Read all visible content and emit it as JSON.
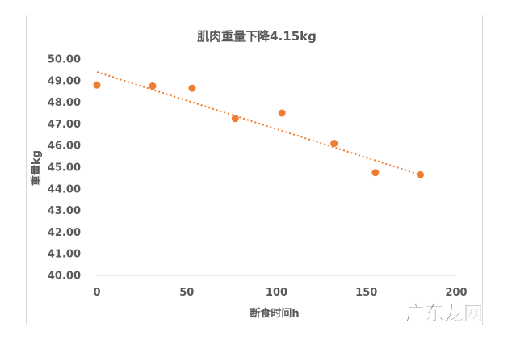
{
  "chart_data": {
    "type": "scatter",
    "title": "肌肉重量下降4.15kg",
    "xlabel": "断食时间h",
    "ylabel": "重量kg",
    "xlim": [
      0,
      200
    ],
    "ylim": [
      40,
      50
    ],
    "x_ticks": [
      "0",
      "50",
      "100",
      "150",
      "200"
    ],
    "y_ticks": [
      "40.00",
      "41.00",
      "42.00",
      "43.00",
      "44.00",
      "45.00",
      "46.00",
      "47.00",
      "48.00",
      "49.00",
      "50.00"
    ],
    "grid": false,
    "legend": "none",
    "series": [
      {
        "color": "#ED7D31",
        "points": [
          {
            "x": 0,
            "y": 48.8
          },
          {
            "x": 31,
            "y": 48.75
          },
          {
            "x": 53,
            "y": 48.65
          },
          {
            "x": 77,
            "y": 47.25
          },
          {
            "x": 103,
            "y": 47.5
          },
          {
            "x": 132,
            "y": 46.1
          },
          {
            "x": 155,
            "y": 44.75
          },
          {
            "x": 180,
            "y": 44.65
          }
        ]
      }
    ],
    "trendline": {
      "type": "linear",
      "style": "dotted",
      "color": "#ED7D31",
      "start": {
        "x": 0,
        "y": 49.4
      },
      "end": {
        "x": 180,
        "y": 44.65
      }
    },
    "axis_color": "#D9D9D9",
    "text_color": "#595959"
  },
  "watermark": {
    "text": "广东龙网"
  }
}
